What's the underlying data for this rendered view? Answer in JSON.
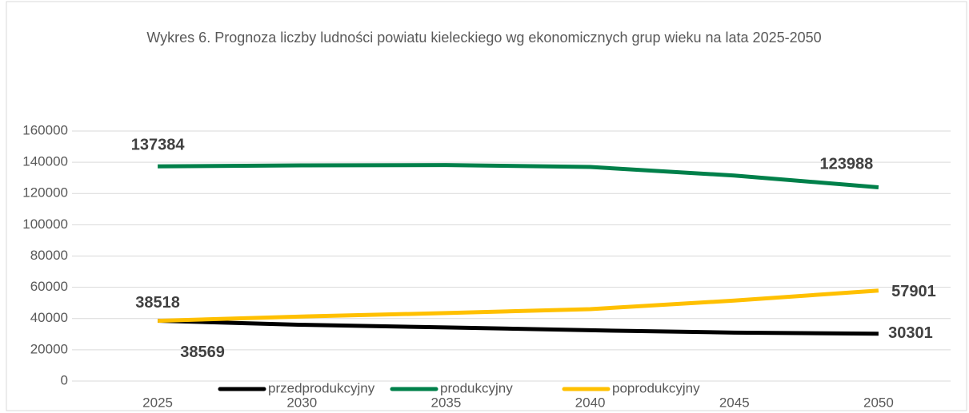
{
  "chart_data": {
    "type": "line",
    "title": "Wykres 6. Prognoza liczby ludności powiatu kieleckiego wg ekonomicznych grup wieku na lata 2025-2050",
    "categories": [
      "2025",
      "2030",
      "2035",
      "2040",
      "2045",
      "2050"
    ],
    "series": [
      {
        "name": "przedprodukcyjny",
        "color": "#000000",
        "values": [
          38569,
          36000,
          34300,
          32500,
          31000,
          30301
        ]
      },
      {
        "name": "produkcyjny",
        "color": "#00804a",
        "values": [
          137384,
          138000,
          138200,
          137000,
          131500,
          123988
        ]
      },
      {
        "name": "poprodukcyjny",
        "color": "#ffc000",
        "values": [
          38518,
          41300,
          43500,
          46000,
          51500,
          57901
        ]
      }
    ],
    "ylim": [
      0,
      160000
    ],
    "yticks": [
      0,
      20000,
      40000,
      60000,
      80000,
      100000,
      120000,
      140000,
      160000
    ],
    "grid": true,
    "legend": "bottom"
  }
}
